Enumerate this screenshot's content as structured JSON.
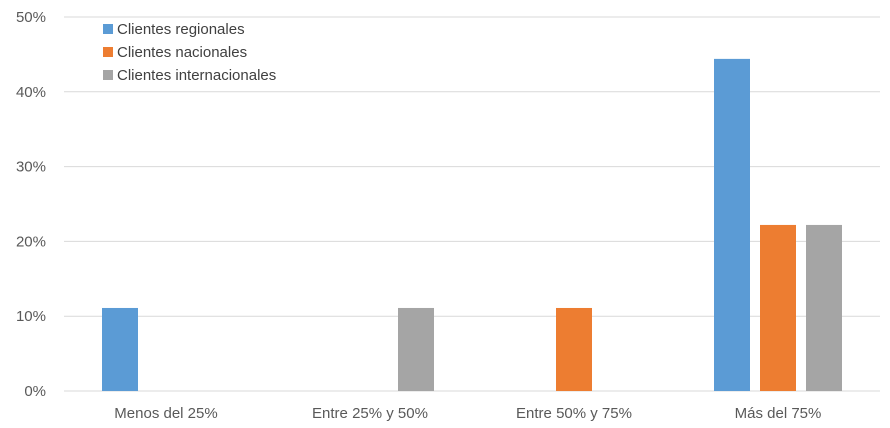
{
  "chart_data": {
    "type": "bar",
    "title": "",
    "xlabel": "",
    "ylabel": "",
    "categories": [
      "Menos del 25%",
      "Entre 25% y 50%",
      "Entre 50% y 75%",
      "Más del 75%"
    ],
    "series": [
      {
        "name": "Clientes regionales",
        "color": "#5B9BD5",
        "values": [
          11.1,
          0,
          0,
          44.4
        ]
      },
      {
        "name": "Clientes nacionales",
        "color": "#ED7D31",
        "values": [
          0,
          0,
          11.1,
          22.2
        ]
      },
      {
        "name": "Clientes internacionales",
        "color": "#A5A5A5",
        "values": [
          0,
          11.1,
          0,
          22.2
        ]
      }
    ],
    "ylim": [
      0,
      50
    ],
    "yticks": [
      0,
      10,
      20,
      30,
      40,
      50
    ],
    "ytick_labels": [
      "0%",
      "10%",
      "20%",
      "30%",
      "40%",
      "50%"
    ],
    "grid": true,
    "legend_position": "top-left"
  }
}
